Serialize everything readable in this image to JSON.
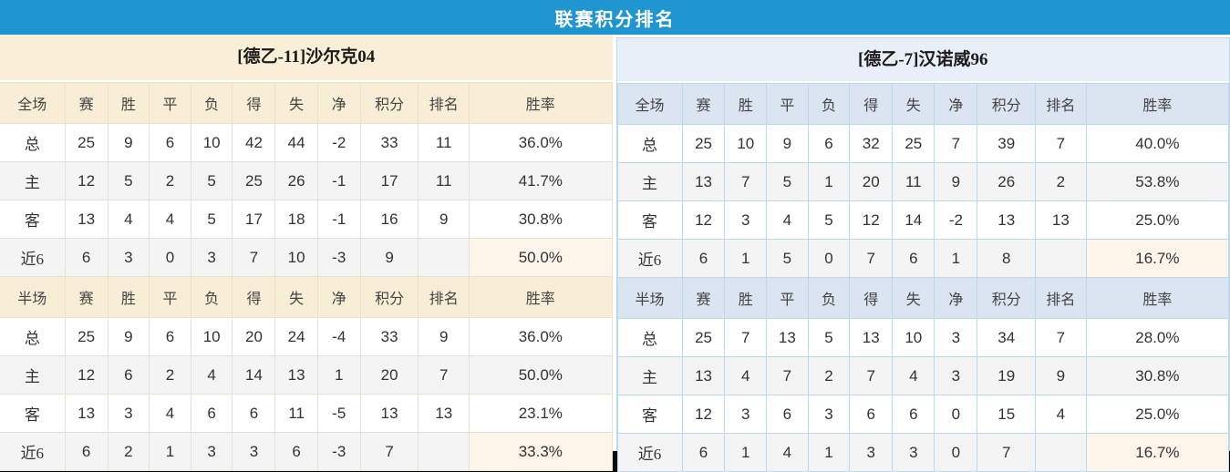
{
  "header": {
    "title": "联赛积分排名"
  },
  "columns": {
    "full": [
      "全场",
      "赛",
      "胜",
      "平",
      "负",
      "得",
      "失",
      "净",
      "积分",
      "排名",
      "胜率"
    ],
    "half": [
      "半场",
      "赛",
      "胜",
      "平",
      "负",
      "得",
      "失",
      "净",
      "积分",
      "排名",
      "胜率"
    ]
  },
  "colors": {
    "title_bar_blue": "#1f95d2",
    "left_theme_bg": "#f9efd9",
    "left_header_bg": "#f8eed6",
    "right_theme_bg": "#e9eff9",
    "right_header_bg": "#dbe4f1",
    "right_border": "#bcd8ec",
    "points_red": "#ff3c21",
    "rank_blue": "#2d8bd8",
    "home_label_red": "#e5383b",
    "away_label_blue": "#5553e0"
  },
  "teams": [
    {
      "name": "[德乙-11]沙尔克04",
      "sections": [
        {
          "scope": "full",
          "rows": [
            {
              "label": "总",
              "type": "total",
              "stats": [
                "25",
                "9",
                "6",
                "10",
                "42",
                "44",
                "-2"
              ],
              "points": "33",
              "rank": "11",
              "rate": "36.0%"
            },
            {
              "label": "主",
              "type": "home",
              "stats": [
                "12",
                "5",
                "2",
                "5",
                "25",
                "26",
                "-1"
              ],
              "points": "17",
              "rank": "11",
              "rate": "41.7%"
            },
            {
              "label": "客",
              "type": "away",
              "stats": [
                "13",
                "4",
                "4",
                "5",
                "17",
                "18",
                "-1"
              ],
              "points": "16",
              "rank": "9",
              "rate": "30.8%"
            },
            {
              "label": "近6",
              "type": "recent",
              "stats": [
                "6",
                "3",
                "0",
                "3",
                "7",
                "10",
                "-3"
              ],
              "points": "9",
              "rank": "",
              "rate": "50.0%"
            }
          ]
        },
        {
          "scope": "half",
          "rows": [
            {
              "label": "总",
              "type": "total",
              "stats": [
                "25",
                "9",
                "6",
                "10",
                "20",
                "24",
                "-4"
              ],
              "points": "33",
              "rank": "9",
              "rate": "36.0%"
            },
            {
              "label": "主",
              "type": "home",
              "stats": [
                "12",
                "6",
                "2",
                "4",
                "14",
                "13",
                "1"
              ],
              "points": "20",
              "rank": "7",
              "rate": "50.0%"
            },
            {
              "label": "客",
              "type": "away",
              "stats": [
                "13",
                "3",
                "4",
                "6",
                "6",
                "11",
                "-5"
              ],
              "points": "13",
              "rank": "13",
              "rate": "23.1%"
            },
            {
              "label": "近6",
              "type": "recent",
              "stats": [
                "6",
                "2",
                "1",
                "3",
                "3",
                "6",
                "-3"
              ],
              "points": "7",
              "rank": "",
              "rate": "33.3%"
            }
          ]
        }
      ]
    },
    {
      "name": "[德乙-7]汉诺威96",
      "sections": [
        {
          "scope": "full",
          "rows": [
            {
              "label": "总",
              "type": "total",
              "stats": [
                "25",
                "10",
                "9",
                "6",
                "32",
                "25",
                "7"
              ],
              "points": "39",
              "rank": "7",
              "rate": "40.0%"
            },
            {
              "label": "主",
              "type": "home",
              "stats": [
                "13",
                "7",
                "5",
                "1",
                "20",
                "11",
                "9"
              ],
              "points": "26",
              "rank": "2",
              "rate": "53.8%"
            },
            {
              "label": "客",
              "type": "away",
              "stats": [
                "12",
                "3",
                "4",
                "5",
                "12",
                "14",
                "-2"
              ],
              "points": "13",
              "rank": "13",
              "rate": "25.0%"
            },
            {
              "label": "近6",
              "type": "recent",
              "stats": [
                "6",
                "1",
                "5",
                "0",
                "7",
                "6",
                "1"
              ],
              "points": "8",
              "rank": "",
              "rate": "16.7%"
            }
          ]
        },
        {
          "scope": "half",
          "rows": [
            {
              "label": "总",
              "type": "total",
              "stats": [
                "25",
                "7",
                "13",
                "5",
                "13",
                "10",
                "3"
              ],
              "points": "34",
              "rank": "7",
              "rate": "28.0%"
            },
            {
              "label": "主",
              "type": "home",
              "stats": [
                "13",
                "4",
                "7",
                "2",
                "7",
                "4",
                "3"
              ],
              "points": "19",
              "rank": "9",
              "rate": "30.8%"
            },
            {
              "label": "客",
              "type": "away",
              "stats": [
                "12",
                "3",
                "6",
                "3",
                "6",
                "6",
                "0"
              ],
              "points": "15",
              "rank": "4",
              "rate": "25.0%"
            },
            {
              "label": "近6",
              "type": "recent",
              "stats": [
                "6",
                "1",
                "4",
                "1",
                "3",
                "3",
                "0"
              ],
              "points": "7",
              "rank": "",
              "rate": "16.7%"
            }
          ]
        }
      ]
    }
  ]
}
